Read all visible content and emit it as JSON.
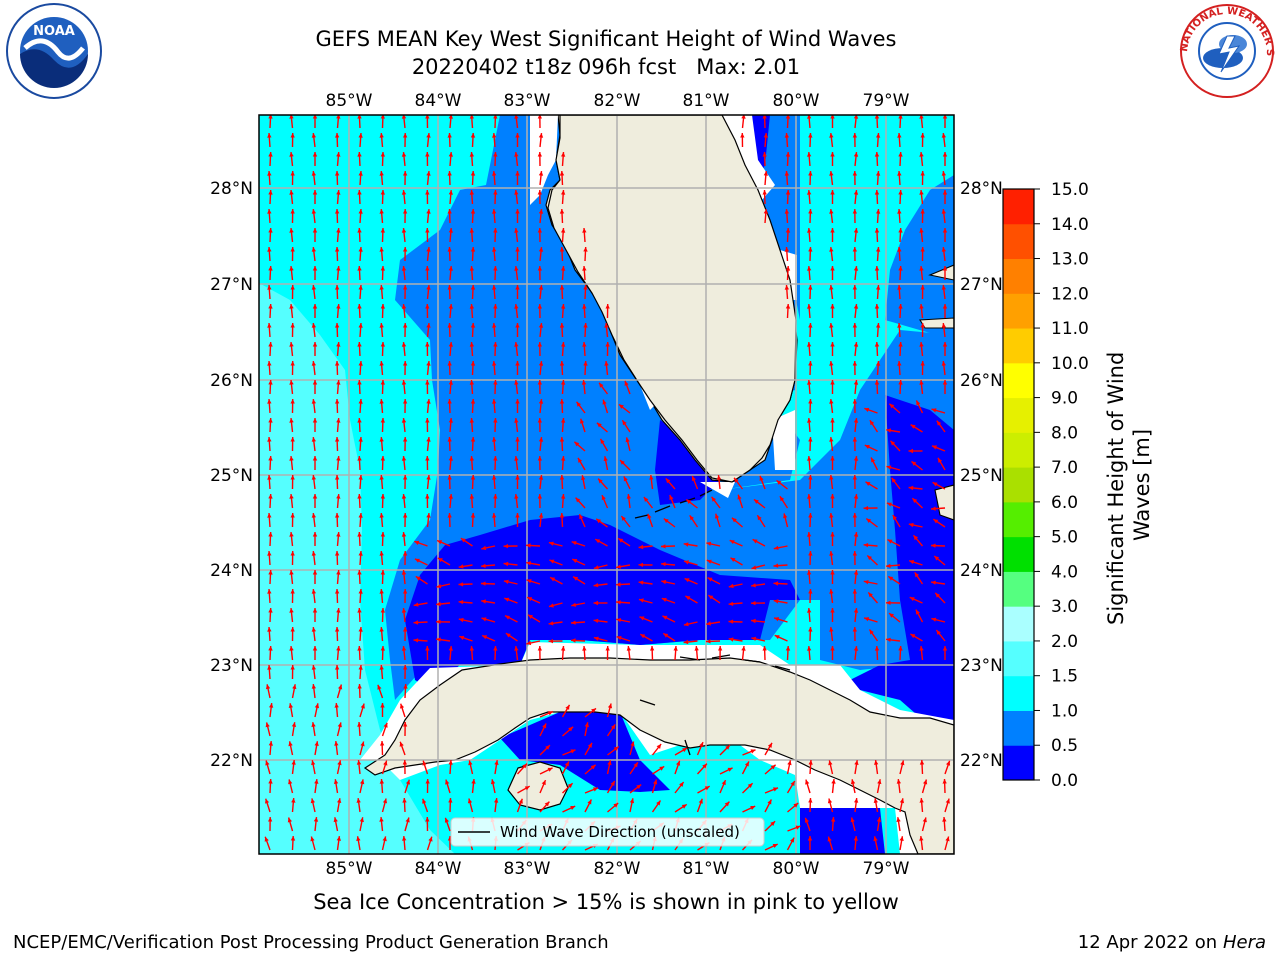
{
  "title_line1": "GEFS MEAN Key West Significant Height of Wind Waves",
  "title_line2": "20220402 t18z 096h fcst   Max: 2.01",
  "subtitle": "Sea Ice Concentration > 15% is shown in pink to yellow",
  "footer_left": "NCEP/EMC/Verification Post Processing Product Generation Branch",
  "footer_right_date": "12 Apr 2022 on ",
  "footer_right_machine": "Hera",
  "legend_label": "Wind Wave Direction (unscaled)",
  "colorbar": {
    "label_line1": "Significant Height of Wind",
    "label_line2": "Waves [m]",
    "ticks": [
      "0.0",
      "0.5",
      "1.0",
      "1.5",
      "2.0",
      "3.0",
      "4.0",
      "5.0",
      "6.0",
      "7.0",
      "8.0",
      "9.0",
      "10.0",
      "11.0",
      "12.0",
      "13.0",
      "14.0",
      "15.0"
    ],
    "colors": [
      "#0000ff",
      "#0080ff",
      "#00ffff",
      "#55ffff",
      "#aaffff",
      "#55ff80",
      "#00e000",
      "#55ee00",
      "#aae000",
      "#ccee00",
      "#e6f000",
      "#ffff00",
      "#ffcc00",
      "#ffa000",
      "#ff8000",
      "#ff5000",
      "#ff2000"
    ]
  },
  "axes": {
    "lon_labels": [
      "85°W",
      "84°W",
      "83°W",
      "82°W",
      "81°W",
      "80°W",
      "79°W"
    ],
    "lat_labels": [
      "28°N",
      "27°N",
      "26°N",
      "25°N",
      "24°N",
      "23°N",
      "22°N"
    ],
    "lon_range": [
      -86.0,
      -78.3
    ],
    "lat_range": [
      21.1,
      28.8
    ]
  },
  "colors": {
    "land": "#efeddd",
    "arrow": "#ff0000",
    "grid": "#b0b0b0"
  },
  "logos": {
    "left": "NOAA",
    "right": "NATIONAL WEATHER SERVICE"
  }
}
